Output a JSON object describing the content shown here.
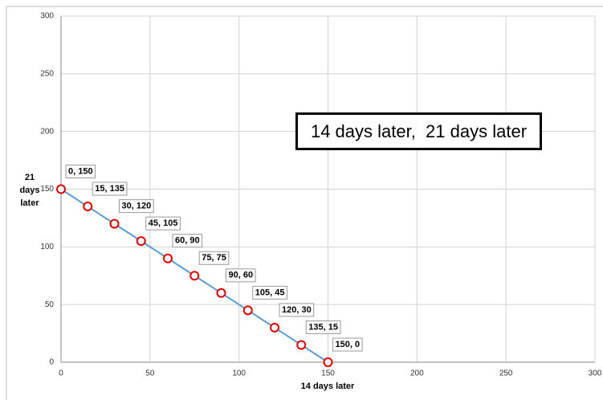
{
  "chart_data": {
    "type": "scatter",
    "annotation": "14 days later,  21 days later",
    "x_label": "14 days later",
    "y_label": "21 days later",
    "xlim": [
      0,
      300
    ],
    "xticks": [
      0,
      50,
      100,
      150,
      200,
      250,
      300
    ],
    "ylim": [
      0,
      300
    ],
    "yticks": [
      0,
      50,
      100,
      150,
      200,
      250,
      300
    ],
    "grid": true,
    "series": [
      {
        "color": "#5b9bd5",
        "marker_color": "#e00000",
        "x": [
          0,
          15,
          30,
          45,
          60,
          75,
          90,
          105,
          120,
          135,
          150
        ],
        "values": [
          150,
          135,
          120,
          105,
          90,
          75,
          60,
          45,
          30,
          15,
          0
        ],
        "value_labels": [
          "0, 150",
          "15, 135",
          "30, 120",
          "45, 105",
          "60, 90",
          "75, 75",
          "90, 60",
          "105, 45",
          "120, 30",
          "135, 15",
          "150, 0"
        ]
      }
    ]
  }
}
